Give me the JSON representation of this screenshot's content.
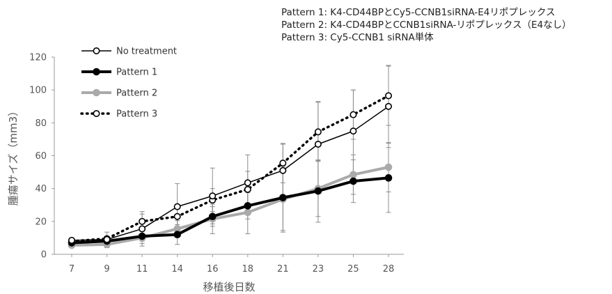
{
  "chart_data": {
    "type": "line",
    "xlabel": "移植後日数",
    "ylabel": "腫瘍サイズ（mm3）",
    "categories": [
      "7",
      "9",
      "11",
      "14",
      "16",
      "18",
      "21",
      "23",
      "25",
      "28"
    ],
    "ylim": [
      0,
      120
    ],
    "yticks": [
      0,
      20,
      40,
      60,
      80,
      100,
      120
    ],
    "grid": false,
    "legend_position": "top-left",
    "notes": [
      "Pattern 1: K4-CD44BPとCy5-CCNB1siRNA-E4リポプレックス",
      "Pattern 2: K4-CD44BPとCCNB1siRNA-リポプレックス（E4なし）",
      "Pattern 3: Cy5-CCNB1 siRNA単体"
    ],
    "series": [
      {
        "name": "No treatment",
        "color": "#000000",
        "line_style": "solid-thin",
        "marker": "open-circle",
        "values": [
          8.5,
          9,
          15.5,
          29,
          35.5,
          43.5,
          51,
          67,
          75,
          90
        ],
        "errors": [
          1.5,
          2,
          9,
          14,
          17,
          17,
          16,
          26,
          25,
          25
        ]
      },
      {
        "name": "Pattern 1",
        "color": "#000000",
        "line_style": "solid-thick",
        "marker": "filled-circle",
        "values": [
          7,
          8,
          11,
          12,
          23,
          29.5,
          34.5,
          38.5,
          44.5,
          46.5
        ],
        "errors": [
          1,
          2,
          3,
          6,
          6,
          8,
          20,
          19,
          13,
          21
        ]
      },
      {
        "name": "Pattern 2",
        "color": "#aaaaaa",
        "line_style": "solid-thick",
        "marker": "filled-circle",
        "values": [
          5.5,
          6,
          10,
          15.5,
          21.5,
          25.5,
          33.5,
          40,
          48.5,
          53
        ],
        "errors": [
          1.5,
          2,
          5,
          5,
          9,
          13,
          20,
          17,
          12,
          15
        ]
      },
      {
        "name": "Pattern 3",
        "color": "#000000",
        "line_style": "dotted-thick",
        "marker": "open-circle",
        "values": [
          8,
          9.5,
          20,
          23,
          33,
          39.5,
          55.5,
          74.5,
          85,
          96.5
        ],
        "errors": [
          2,
          4,
          6,
          6,
          7,
          11,
          12,
          18,
          15,
          18
        ]
      }
    ]
  }
}
